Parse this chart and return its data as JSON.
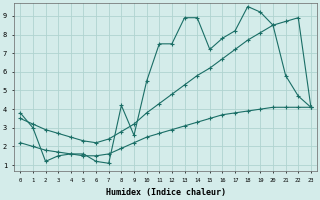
{
  "xlabel": "Humidex (Indice chaleur)",
  "bg_color": "#d4ecea",
  "grid_color": "#b0d4d0",
  "line_color": "#1a6e66",
  "xlim": [
    -0.5,
    23.5
  ],
  "ylim": [
    0.7,
    9.7
  ],
  "xticks": [
    0,
    1,
    2,
    3,
    4,
    5,
    6,
    7,
    8,
    9,
    10,
    11,
    12,
    13,
    14,
    15,
    16,
    17,
    18,
    19,
    20,
    21,
    22,
    23
  ],
  "yticks": [
    1,
    2,
    3,
    4,
    5,
    6,
    7,
    8,
    9
  ],
  "line1_x": [
    0,
    1,
    2,
    3,
    4,
    5,
    6,
    7,
    8,
    9,
    10,
    11,
    12,
    13,
    14,
    15,
    16,
    17,
    18,
    19,
    20,
    21,
    22,
    23
  ],
  "line1_y": [
    3.8,
    3.0,
    1.2,
    1.5,
    1.6,
    1.6,
    1.2,
    1.1,
    4.2,
    2.6,
    5.5,
    7.5,
    7.5,
    8.9,
    8.9,
    7.2,
    7.8,
    8.2,
    9.5,
    9.2,
    8.5,
    5.8,
    4.7,
    4.1
  ],
  "line2_x": [
    0,
    1,
    2,
    3,
    4,
    5,
    6,
    7,
    8,
    9,
    10,
    11,
    12,
    13,
    14,
    15,
    16,
    17,
    18,
    19,
    20,
    21,
    22,
    23
  ],
  "line2_y": [
    3.5,
    3.2,
    2.9,
    2.7,
    2.5,
    2.3,
    2.2,
    2.4,
    2.8,
    3.2,
    3.8,
    4.3,
    4.8,
    5.3,
    5.8,
    6.2,
    6.7,
    7.2,
    7.7,
    8.1,
    8.5,
    8.7,
    8.9,
    4.1
  ],
  "line3_x": [
    0,
    1,
    2,
    3,
    4,
    5,
    6,
    7,
    8,
    9,
    10,
    11,
    12,
    13,
    14,
    15,
    16,
    17,
    18,
    19,
    20,
    21,
    22,
    23
  ],
  "line3_y": [
    2.2,
    2.0,
    1.8,
    1.7,
    1.6,
    1.5,
    1.5,
    1.6,
    1.9,
    2.2,
    2.5,
    2.7,
    2.9,
    3.1,
    3.3,
    3.5,
    3.7,
    3.8,
    3.9,
    4.0,
    4.1,
    4.1,
    4.1,
    4.1
  ]
}
